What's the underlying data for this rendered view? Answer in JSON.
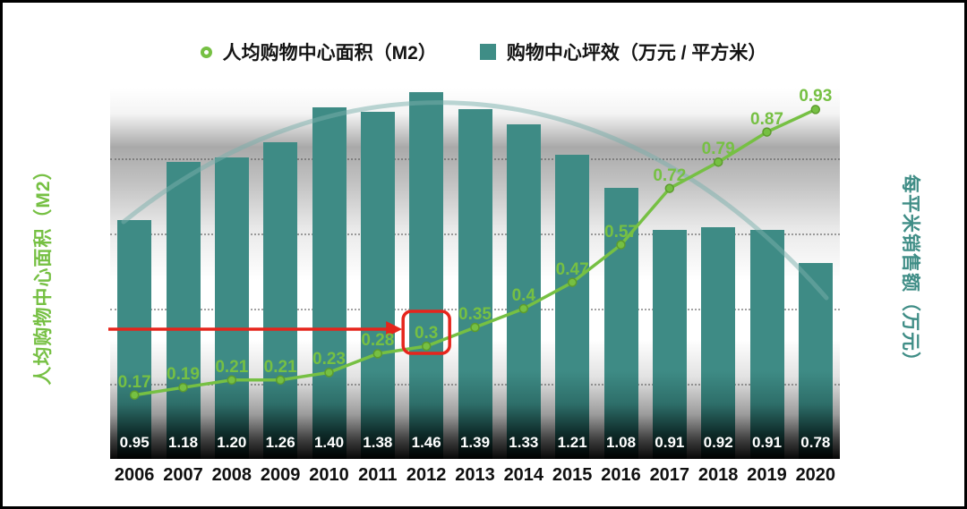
{
  "page": {
    "background": "#ffffff",
    "border_color": "#000000"
  },
  "legend": {
    "items": [
      {
        "label": "人均购物中心面积（M2）",
        "marker": "ring-icon",
        "color": "#76c043"
      },
      {
        "label": "购物中心坪效（万元 / 平方米）",
        "marker": "square-icon",
        "color": "#3f8d86"
      }
    ]
  },
  "axes": {
    "left_title": "人均购物中心面积（M2）",
    "left_color": "#76c043",
    "right_title": "每平米销售额（万元）",
    "right_color": "#3f8d86"
  },
  "chart_data": {
    "type": "combo",
    "categories": [
      "2006",
      "2007",
      "2008",
      "2009",
      "2010",
      "2011",
      "2012",
      "2013",
      "2014",
      "2015",
      "2016",
      "2017",
      "2018",
      "2019",
      "2020"
    ],
    "series": [
      {
        "name": "购物中心坪效（万元 / 平方米）",
        "type": "bar",
        "axis": "right",
        "color": "#3f8d86",
        "values": [
          0.95,
          1.18,
          1.2,
          1.26,
          1.4,
          1.38,
          1.46,
          1.39,
          1.33,
          1.21,
          1.08,
          0.91,
          0.92,
          0.91,
          0.78
        ],
        "labels": [
          "0.95",
          "1.18",
          "1.20",
          "1.26",
          "1.40",
          "1.38",
          "1.46",
          "1.39",
          "1.33",
          "1.21",
          "1.08",
          "0.91",
          "0.92",
          "0.91",
          "0.78"
        ]
      },
      {
        "name": "人均购物中心面积（M2）",
        "type": "line",
        "axis": "left",
        "color": "#76c043",
        "values": [
          0.17,
          0.19,
          0.21,
          0.21,
          0.23,
          0.28,
          0.3,
          0.35,
          0.4,
          0.47,
          0.57,
          0.72,
          0.79,
          0.87,
          0.93
        ],
        "labels": [
          "0.17",
          "0.19",
          "0.21",
          "0.21",
          "0.23",
          "0.28",
          "0.3",
          "0.35",
          "0.4",
          "0.47",
          "0.57",
          "0.72",
          "0.79",
          "0.87",
          "0.93"
        ]
      }
    ],
    "left_axis": {
      "min": 0,
      "max": 1.0,
      "gridlines": [
        0.2,
        0.4,
        0.6,
        0.8
      ]
    },
    "grid": "dotted-horizontal",
    "legend_position": "top-center",
    "annotations": {
      "highlight_category": "2012",
      "highlight_index": 6,
      "highlight_label": "0.3",
      "shape": "red-rounded-box-with-left-arrow",
      "arrow_color": "#e6251c"
    },
    "decorations": [
      {
        "type": "faded-arc-trend-curve",
        "color": "#7ab0ac"
      }
    ]
  }
}
